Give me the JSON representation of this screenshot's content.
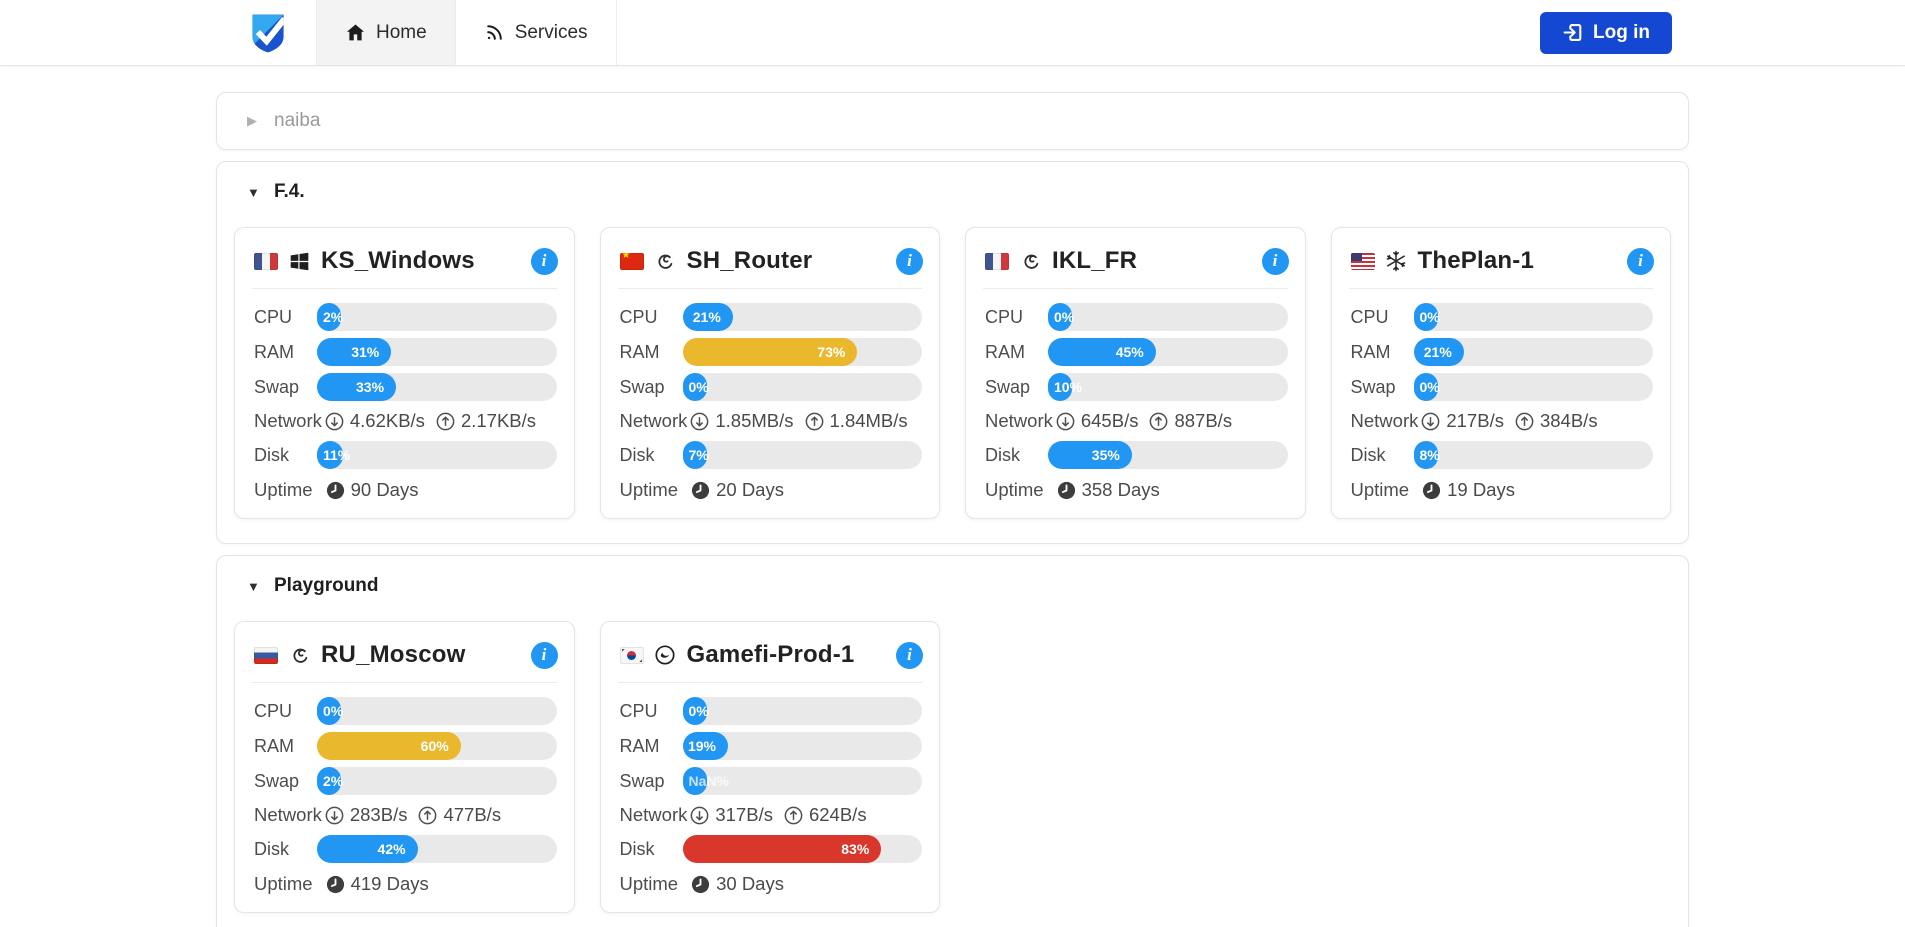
{
  "navbar": {
    "brand_icon": "shield-check-logo",
    "tabs": [
      {
        "label": "Home",
        "icon": "home-icon",
        "active": true
      },
      {
        "label": "Services",
        "icon": "rss-icon",
        "active": false
      }
    ],
    "login_label": "Log in",
    "login_icon": "login-arrow-icon"
  },
  "colors": {
    "primary_bar": "#2196f3",
    "warning_bar": "#eab82d",
    "danger_bar": "#d9362c",
    "info_badge": "#2196f3",
    "login_button": "#1448d2"
  },
  "glyphs": {
    "caret_collapsed": "▶",
    "caret_expanded": "▼"
  },
  "metric_labels": {
    "cpu": "CPU",
    "ram": "RAM",
    "swap": "Swap",
    "network": "Network",
    "disk": "Disk",
    "uptime": "Uptime"
  },
  "groups": [
    {
      "name": "naiba",
      "collapsed": true,
      "servers": []
    },
    {
      "name": "F.4.",
      "collapsed": false,
      "servers": [
        {
          "name": "KS_Windows",
          "country": "fr",
          "os": "windows",
          "cpu": {
            "pct": 2,
            "label": "2%"
          },
          "ram": {
            "pct": 31,
            "label": "31%"
          },
          "swap": {
            "pct": 33,
            "label": "33%"
          },
          "network": {
            "down": "4.62KB/s",
            "up": "2.17KB/s"
          },
          "disk": {
            "pct": 11,
            "label": "11%"
          },
          "uptime": "90 Days"
        },
        {
          "name": "SH_Router",
          "country": "cn",
          "os": "debian",
          "cpu": {
            "pct": 21,
            "label": "21%"
          },
          "ram": {
            "pct": 73,
            "label": "73%"
          },
          "swap": {
            "pct": 0,
            "label": "0%"
          },
          "network": {
            "down": "1.85MB/s",
            "up": "1.84MB/s"
          },
          "disk": {
            "pct": 7,
            "label": "7%"
          },
          "uptime": "20 Days"
        },
        {
          "name": "IKL_FR",
          "country": "fr",
          "os": "debian",
          "cpu": {
            "pct": 0,
            "label": "0%"
          },
          "ram": {
            "pct": 45,
            "label": "45%"
          },
          "swap": {
            "pct": 10,
            "label": "10%"
          },
          "network": {
            "down": "645B/s",
            "up": "887B/s"
          },
          "disk": {
            "pct": 35,
            "label": "35%"
          },
          "uptime": "358 Days"
        },
        {
          "name": "ThePlan-1",
          "country": "us",
          "os": "nixos",
          "cpu": {
            "pct": 0,
            "label": "0%"
          },
          "ram": {
            "pct": 21,
            "label": "21%"
          },
          "swap": {
            "pct": 0,
            "label": "0%"
          },
          "network": {
            "down": "217B/s",
            "up": "384B/s"
          },
          "disk": {
            "pct": 8,
            "label": "8%"
          },
          "uptime": "19 Days"
        }
      ]
    },
    {
      "name": "Playground",
      "collapsed": false,
      "servers": [
        {
          "name": "RU_Moscow",
          "country": "ru",
          "os": "debian",
          "cpu": {
            "pct": 0,
            "label": "0%"
          },
          "ram": {
            "pct": 60,
            "label": "60%"
          },
          "swap": {
            "pct": 2,
            "label": "2%"
          },
          "network": {
            "down": "283B/s",
            "up": "477B/s"
          },
          "disk": {
            "pct": 42,
            "label": "42%"
          },
          "uptime": "419 Days"
        },
        {
          "name": "Gamefi-Prod-1",
          "country": "kr",
          "os": "deepin",
          "cpu": {
            "pct": 0,
            "label": "0%"
          },
          "ram": {
            "pct": 19,
            "label": "19%"
          },
          "swap": {
            "pct": null,
            "label": "NaN%"
          },
          "network": {
            "down": "317B/s",
            "up": "624B/s"
          },
          "disk": {
            "pct": 83,
            "label": "83%"
          },
          "uptime": "30 Days"
        }
      ]
    }
  ]
}
